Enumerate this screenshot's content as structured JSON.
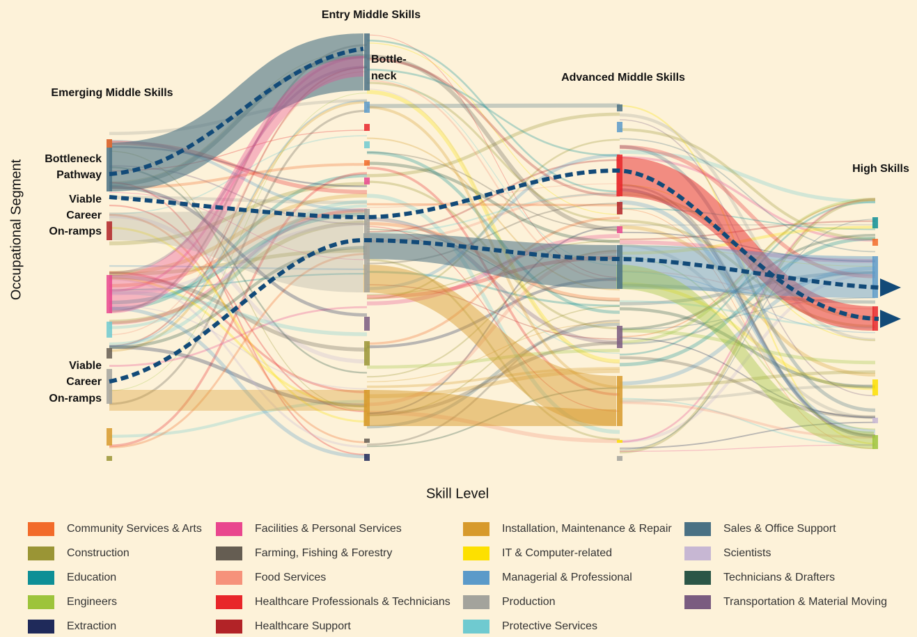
{
  "axis_labels": {
    "y": "Occupational Segment",
    "x": "Skill Level"
  },
  "columns": [
    "Emerging Middle Skills",
    "Entry Middle Skills",
    "Advanced Middle Skills",
    "High Skills"
  ],
  "annotations": {
    "bottleneck_pathway": [
      "Bottleneck",
      "Pathway"
    ],
    "on_ramps_upper": [
      "Viable",
      "Career",
      "On-ramps"
    ],
    "on_ramps_lower": [
      "Viable",
      "Career",
      "On-ramps"
    ],
    "bottleneck": [
      "Bottle-",
      "neck"
    ]
  },
  "legend": [
    {
      "label": "Community Services & Arts",
      "color": "#f26b2a"
    },
    {
      "label": "Construction",
      "color": "#9a9535"
    },
    {
      "label": "Education",
      "color": "#0e8f96"
    },
    {
      "label": "Engineers",
      "color": "#9dc43b"
    },
    {
      "label": "Extraction",
      "color": "#1f2a5a"
    },
    {
      "label": "Facilities & Personal Services",
      "color": "#e9468e"
    },
    {
      "label": "Farming, Fishing & Forestry",
      "color": "#655d52"
    },
    {
      "label": "Food Services",
      "color": "#f6927b"
    },
    {
      "label": "Healthcare Professionals & Technicians",
      "color": "#e8262a"
    },
    {
      "label": "Healthcare Support",
      "color": "#b22327"
    },
    {
      "label": "Installation, Maintenance & Repair",
      "color": "#d79a2b"
    },
    {
      "label": "IT & Computer-related",
      "color": "#fde000"
    },
    {
      "label": "Managerial & Professional",
      "color": "#5b9ac9"
    },
    {
      "label": "Production",
      "color": "#a3a39c"
    },
    {
      "label": "Protective Services",
      "color": "#6fcad0"
    },
    {
      "label": "Sales & Office Support",
      "color": "#4a7184"
    },
    {
      "label": "Scientists",
      "color": "#c7b7d3"
    },
    {
      "label": "Technicians & Drafters",
      "color": "#2b5647"
    },
    {
      "label": "Transportation & Material Moving",
      "color": "#7a5c80"
    }
  ]
}
